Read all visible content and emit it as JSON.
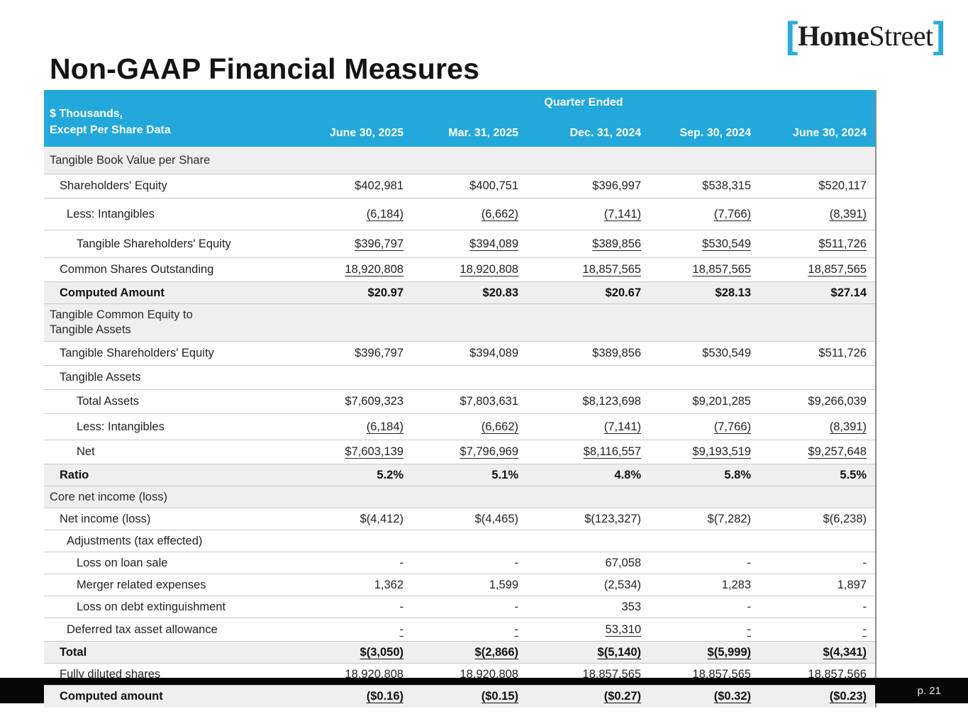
{
  "page": {
    "title": "Non-GAAP Financial Measures",
    "page_number": "p. 21"
  },
  "logo": {
    "open_bracket": "[",
    "home": "Home",
    "street": "Street",
    "close_bracket": "]"
  },
  "colors": {
    "accent_cyan": "#22a8da",
    "footer_black": "#060606",
    "section_gray": "#efefef"
  },
  "table": {
    "corner_label": "$ Thousands,\nExcept Per Share Data",
    "group_header": "Quarter Ended",
    "columns": [
      "June 30, 2025",
      "Mar. 31, 2025",
      "Dec. 31, 2024",
      "Sep. 30, 2024",
      "June 30, 2024"
    ],
    "rows": [
      {
        "label": "Tangible Book Value per Share",
        "kind": "section",
        "indent": 0,
        "underline": false,
        "values": [
          "",
          "",
          "",
          "",
          ""
        ]
      },
      {
        "label": "Shareholders' Equity",
        "kind": "data",
        "indent": 1,
        "underline": false,
        "values": [
          "$402,981",
          "$400,751",
          "$396,997",
          "$538,315",
          "$520,117"
        ]
      },
      {
        "label": "Less: Intangibles",
        "kind": "data",
        "indent": 2,
        "underline": true,
        "values": [
          "(6,184)",
          "(6,662)",
          "(7,141)",
          "(7,766)",
          "(8,391)"
        ]
      },
      {
        "label": "Tangible Shareholders' Equity",
        "kind": "data",
        "indent": 3,
        "underline": true,
        "values": [
          "$396,797",
          "$394,089",
          "$389,856",
          "$530,549",
          "$511,726"
        ]
      },
      {
        "label": "Common Shares Outstanding",
        "kind": "data",
        "indent": 1,
        "underline": true,
        "values": [
          "18,920,808",
          "18,920,808",
          "18,857,565",
          "18,857,565",
          "18,857,565"
        ]
      },
      {
        "label": "Computed Amount",
        "kind": "total",
        "indent": 1,
        "underline": false,
        "values": [
          "$20.97",
          "$20.83",
          "$20.67",
          "$28.13",
          "$27.14"
        ]
      },
      {
        "label": "Tangible Common Equity to\nTangible Assets",
        "kind": "section",
        "indent": 0,
        "underline": false,
        "values": [
          "",
          "",
          "",
          "",
          ""
        ]
      },
      {
        "label": "Tangible Shareholders' Equity",
        "kind": "data",
        "indent": 1,
        "underline": false,
        "values": [
          "$396,797",
          "$394,089",
          "$389,856",
          "$530,549",
          "$511,726"
        ]
      },
      {
        "label": "Tangible Assets",
        "kind": "data",
        "indent": 1,
        "underline": false,
        "values": [
          "",
          "",
          "",
          "",
          ""
        ]
      },
      {
        "label": "Total Assets",
        "kind": "data",
        "indent": 3,
        "underline": false,
        "values": [
          "$7,609,323",
          "$7,803,631",
          "$8,123,698",
          "$9,201,285",
          "$9,266,039"
        ]
      },
      {
        "label": "Less: Intangibles",
        "kind": "data",
        "indent": 3,
        "underline": true,
        "values": [
          "(6,184)",
          "(6,662)",
          "(7,141)",
          "(7,766)",
          "(8,391)"
        ]
      },
      {
        "label": "Net",
        "kind": "data",
        "indent": 3,
        "underline": true,
        "values": [
          "$7,603,139",
          "$7,796,969",
          "$8,116,557",
          "$9,193,519",
          "$9,257,648"
        ]
      },
      {
        "label": "Ratio",
        "kind": "total",
        "indent": 1,
        "underline": false,
        "values": [
          "5.2%",
          "5.1%",
          "4.8%",
          "5.8%",
          "5.5%"
        ]
      },
      {
        "label": "Core net income (loss)",
        "kind": "section",
        "indent": 0,
        "underline": false,
        "values": [
          "",
          "",
          "",
          "",
          ""
        ]
      },
      {
        "label": "Net income (loss)",
        "kind": "data",
        "indent": 1,
        "underline": false,
        "values": [
          "$(4,412)",
          "$(4,465)",
          "$(123,327)",
          "$(7,282)",
          "$(6,238)"
        ]
      },
      {
        "label": "Adjustments (tax effected)",
        "kind": "data",
        "indent": 2,
        "underline": false,
        "values": [
          "",
          "",
          "",
          "",
          ""
        ]
      },
      {
        "label": "Loss on loan sale",
        "kind": "data",
        "indent": 3,
        "underline": false,
        "values": [
          "-",
          "-",
          "67,058",
          "-",
          "-"
        ]
      },
      {
        "label": "Merger related expenses",
        "kind": "data",
        "indent": 3,
        "underline": false,
        "values": [
          "1,362",
          "1,599",
          "(2,534)",
          "1,283",
          "1,897"
        ]
      },
      {
        "label": "Loss on debt extinguishment",
        "kind": "data",
        "indent": 3,
        "underline": false,
        "values": [
          "-",
          "-",
          "353",
          "-",
          "-"
        ]
      },
      {
        "label": "Deferred tax asset allowance",
        "kind": "data",
        "indent": 2,
        "underline": true,
        "values": [
          "-",
          "-",
          "53,310",
          "-",
          "-"
        ]
      },
      {
        "label": "Total",
        "kind": "total",
        "indent": 1,
        "underline": true,
        "values": [
          "$(3,050)",
          "$(2,866)",
          "$(5,140)",
          "$(5,999)",
          "$(4,341)"
        ]
      },
      {
        "label": "Fully diluted shares",
        "kind": "data",
        "indent": 1,
        "underline": false,
        "values": [
          "18,920,808",
          "18,920,808",
          "18,857,565",
          "18,857,565",
          "18,857,566"
        ]
      },
      {
        "label": "Computed amount",
        "kind": "total",
        "indent": 1,
        "underline": true,
        "values": [
          "($0.16)",
          "($0.15)",
          "($0.27)",
          "($0.32)",
          "($0.23)"
        ]
      }
    ]
  }
}
